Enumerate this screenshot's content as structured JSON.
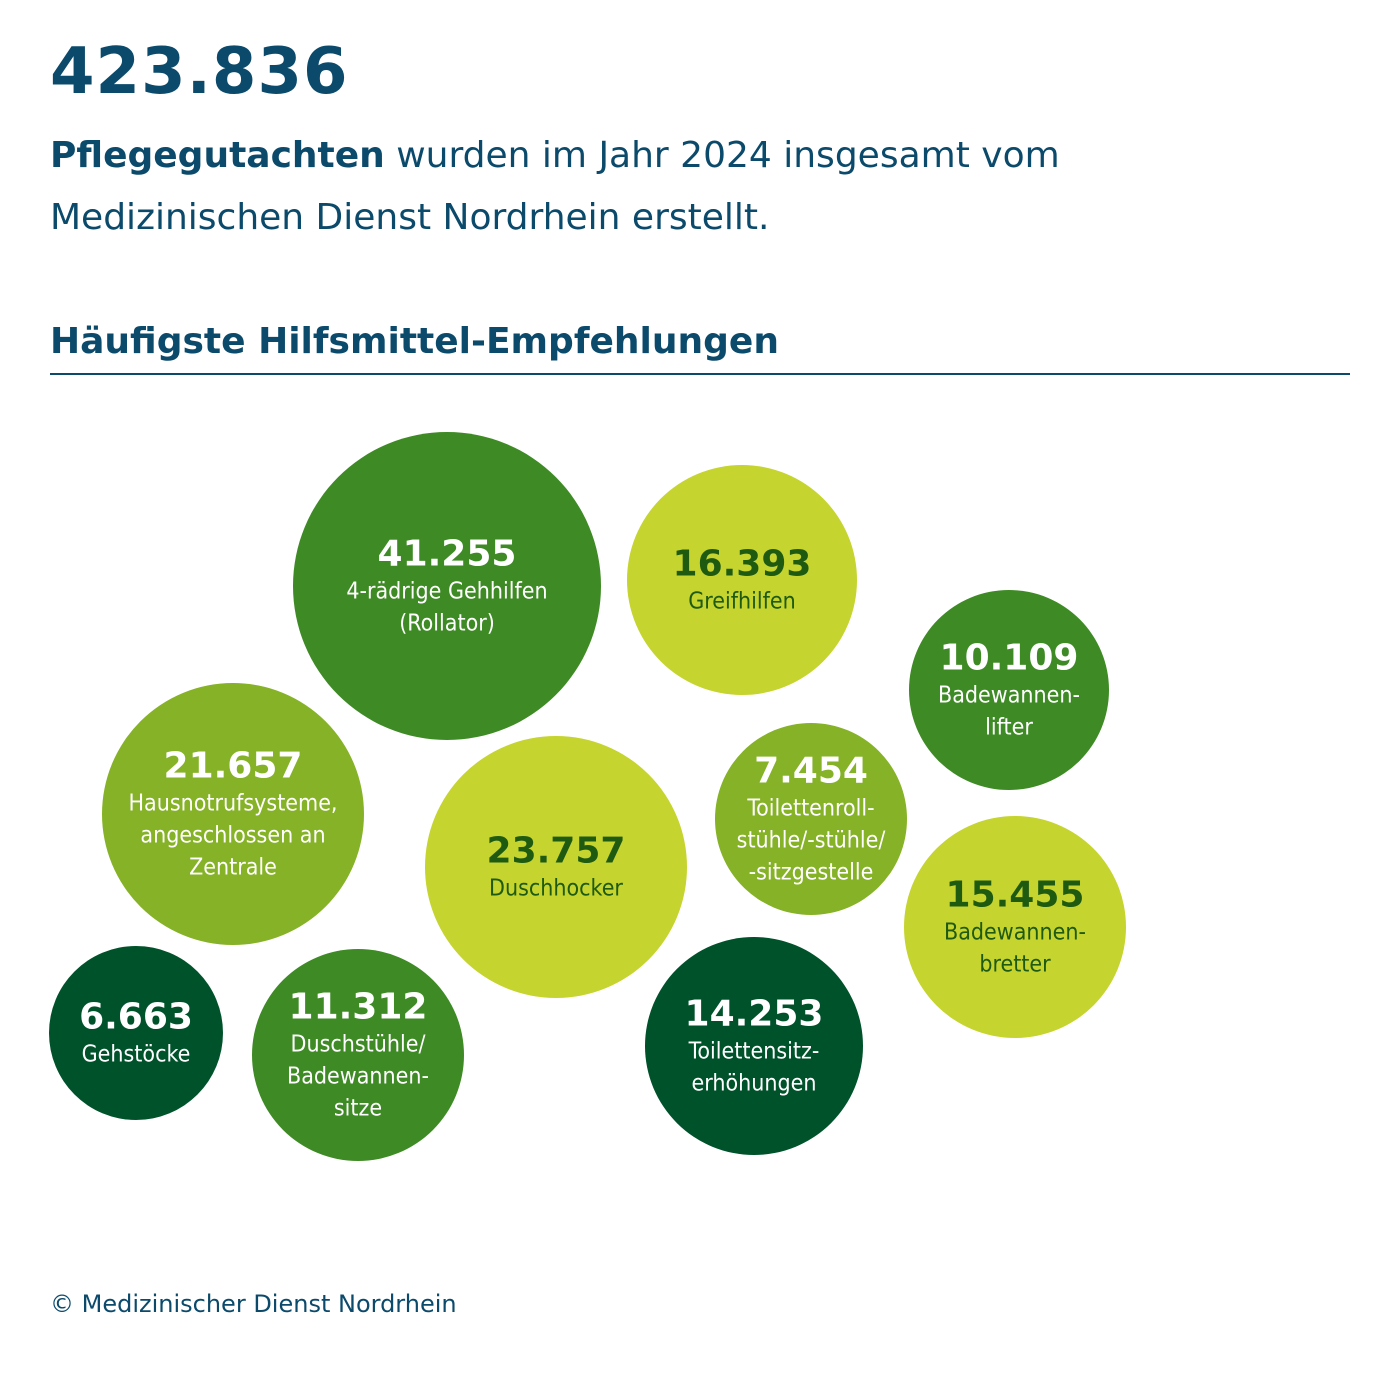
{
  "header": {
    "total_value": "423.836",
    "headline_bold": "Pflegegutachten",
    "headline_line1_rest": " wurden im Jahr 2024 insgesamt vom",
    "headline_line2": "Medizinischen Dienst Nordrhein erstellt."
  },
  "section_title": "Häufigste Hilfsmittel-Empfehlungen",
  "footer": {
    "copyright": "© Medizinischer Dienst Nordrhein"
  },
  "colors": {
    "dark_green": "#00522a",
    "mid_green": "#3e8a25",
    "light_green": "#85b226",
    "lime": "#c5d42f",
    "navy": "#0b4a6b"
  },
  "chart_data": {
    "type": "bubble",
    "title": "Häufigste Hilfsmittel-Empfehlungen",
    "bubbles": [
      {
        "value": 41255,
        "value_label": "41.255",
        "label_lines": [
          "4-rädrige Gehhilfen",
          "(Rollator)"
        ],
        "color": "#3e8a25"
      },
      {
        "value": 16393,
        "value_label": "16.393",
        "label_lines": [
          "Greifhilfen"
        ],
        "color": "#c5d42f"
      },
      {
        "value": 10109,
        "value_label": "10.109",
        "label_lines": [
          "Badewannen-",
          "lifter"
        ],
        "color": "#3e8a25"
      },
      {
        "value": 21657,
        "value_label": "21.657",
        "label_lines": [
          "Hausnotrufsysteme,",
          "angeschlossen an",
          "Zentrale"
        ],
        "color": "#85b226"
      },
      {
        "value": 23757,
        "value_label": "23.757",
        "label_lines": [
          "Duschhocker"
        ],
        "color": "#c5d42f"
      },
      {
        "value": 7454,
        "value_label": "7.454",
        "label_lines": [
          "Toilettenroll-",
          "stühle/-stühle/",
          "-sitzgestelle"
        ],
        "color": "#85b226"
      },
      {
        "value": 15455,
        "value_label": "15.455",
        "label_lines": [
          "Badewannen-",
          "bretter"
        ],
        "color": "#c5d42f"
      },
      {
        "value": 6663,
        "value_label": "6.663",
        "label_lines": [
          "Gehstöcke"
        ],
        "color": "#00522a"
      },
      {
        "value": 11312,
        "value_label": "11.312",
        "label_lines": [
          "Duschstühle/",
          "Badewannen-",
          "sitze"
        ],
        "color": "#3e8a25"
      },
      {
        "value": 14253,
        "value_label": "14.253",
        "label_lines": [
          "Toilettensitz-",
          "erhöhungen"
        ],
        "color": "#00522a"
      }
    ]
  }
}
